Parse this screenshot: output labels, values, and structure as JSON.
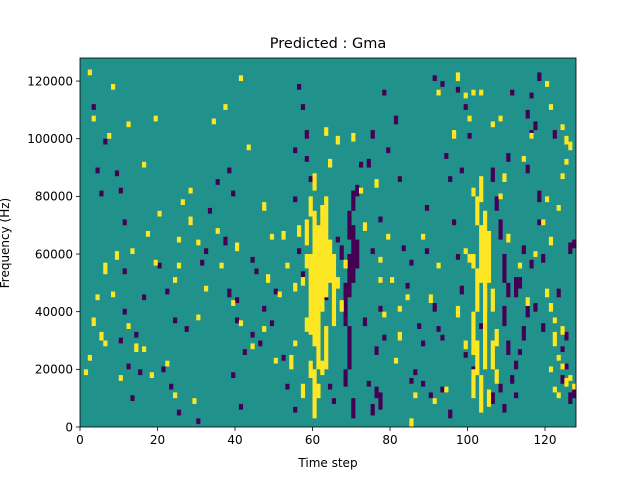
{
  "chart_data": {
    "type": "heatmap",
    "title": "Predicted : Gma",
    "xlabel": "Time step",
    "ylabel": "Frequency (Hz)",
    "xlim": [
      0,
      128
    ],
    "ylim": [
      0,
      128000
    ],
    "xticks": [
      0,
      20,
      40,
      60,
      80,
      100,
      120
    ],
    "yticks": [
      0,
      20000,
      40000,
      60000,
      80000,
      100000,
      120000
    ],
    "colors": {
      "background": "#21918c",
      "high": "#fde725",
      "low": "#440154"
    },
    "grid": false,
    "n_time_steps": 128,
    "n_frequency_bins": 128,
    "bin_height_hz": 1000,
    "high_runs": [
      [
        2,
        122,
        124
      ],
      [
        8,
        117,
        119
      ],
      [
        3,
        106,
        108
      ],
      [
        12,
        104,
        106
      ],
      [
        19,
        106,
        108
      ],
      [
        7,
        100,
        102
      ],
      [
        16,
        90,
        92
      ],
      [
        20,
        73,
        75
      ],
      [
        17,
        66,
        68
      ],
      [
        13,
        60,
        62
      ],
      [
        25,
        64,
        66
      ],
      [
        25,
        55,
        57
      ],
      [
        30,
        63,
        65
      ],
      [
        24,
        50,
        52
      ],
      [
        8,
        45,
        47
      ],
      [
        3,
        35,
        38
      ],
      [
        12,
        34,
        36
      ],
      [
        6,
        28,
        30
      ],
      [
        14,
        26,
        29
      ],
      [
        2,
        23,
        25
      ],
      [
        1,
        18,
        20
      ],
      [
        10,
        16,
        18
      ],
      [
        22,
        21,
        23
      ],
      [
        18,
        17,
        19
      ],
      [
        24,
        10,
        12
      ],
      [
        29,
        8,
        10
      ],
      [
        37,
        110,
        112
      ],
      [
        34,
        105,
        107
      ],
      [
        41,
        120,
        122
      ],
      [
        43,
        96,
        98
      ],
      [
        28,
        81,
        83
      ],
      [
        26,
        77,
        79
      ],
      [
        28,
        70,
        73
      ],
      [
        35,
        67,
        69
      ],
      [
        36,
        55,
        57
      ],
      [
        39,
        42,
        44
      ],
      [
        41,
        35,
        37
      ],
      [
        40,
        61,
        64
      ],
      [
        47,
        75,
        78
      ],
      [
        49,
        65,
        67
      ],
      [
        48,
        50,
        53
      ],
      [
        51,
        45,
        47
      ],
      [
        47,
        33,
        35
      ],
      [
        44,
        27,
        29
      ],
      [
        50,
        22,
        24
      ],
      [
        55,
        28,
        30
      ],
      [
        58,
        33,
        38
      ],
      [
        57,
        10,
        15
      ],
      [
        54,
        20,
        25
      ],
      [
        32,
        47,
        49
      ],
      [
        30,
        37,
        39
      ],
      [
        19,
        56,
        58
      ],
      [
        9,
        58,
        61
      ],
      [
        6,
        53,
        57
      ],
      [
        4,
        44,
        46
      ],
      [
        5,
        30,
        33
      ],
      [
        16,
        26,
        28
      ],
      [
        59,
        17,
        23
      ],
      [
        60,
        3,
        20
      ],
      [
        61,
        10,
        15
      ],
      [
        62,
        18,
        23
      ],
      [
        57,
        49,
        52
      ],
      [
        58,
        55,
        60
      ],
      [
        59,
        32,
        60
      ],
      [
        60,
        28,
        75
      ],
      [
        61,
        20,
        70
      ],
      [
        62,
        40,
        72
      ],
      [
        63,
        45,
        80
      ],
      [
        64,
        50,
        65
      ],
      [
        65,
        55,
        60
      ],
      [
        60,
        82,
        86
      ],
      [
        61,
        50,
        60
      ],
      [
        56,
        66,
        70
      ],
      [
        59,
        73,
        80
      ],
      [
        63,
        20,
        35
      ],
      [
        62,
        72,
        77
      ],
      [
        65,
        35,
        55
      ],
      [
        66,
        48,
        52
      ],
      [
        67,
        40,
        44
      ],
      [
        68,
        55,
        58
      ],
      [
        58,
        63,
        72
      ],
      [
        52,
        65,
        68
      ],
      [
        53,
        55,
        57
      ],
      [
        55,
        47,
        50
      ],
      [
        64,
        90,
        93
      ],
      [
        63,
        101,
        104
      ],
      [
        60,
        86,
        88
      ],
      [
        76,
        83,
        86
      ],
      [
        77,
        57,
        59
      ],
      [
        77,
        50,
        52
      ],
      [
        66,
        98,
        101
      ],
      [
        70,
        99,
        102
      ],
      [
        73,
        68,
        71
      ],
      [
        72,
        81,
        83
      ],
      [
        79,
        65,
        67
      ],
      [
        80,
        50,
        52
      ],
      [
        82,
        40,
        42
      ],
      [
        85,
        0,
        3
      ],
      [
        78,
        38,
        40
      ],
      [
        81,
        22,
        24
      ],
      [
        84,
        44,
        46
      ],
      [
        82,
        30,
        33
      ],
      [
        86,
        10,
        12
      ],
      [
        88,
        65,
        67
      ],
      [
        90,
        43,
        46
      ],
      [
        91,
        8,
        10
      ],
      [
        92,
        55,
        57
      ],
      [
        94,
        12,
        14
      ],
      [
        99,
        60,
        62
      ],
      [
        100,
        57,
        60
      ],
      [
        101,
        10,
        20
      ],
      [
        102,
        18,
        30
      ],
      [
        101,
        25,
        40
      ],
      [
        102,
        40,
        55
      ],
      [
        103,
        50,
        70
      ],
      [
        104,
        60,
        75
      ],
      [
        102,
        70,
        80
      ],
      [
        103,
        78,
        87
      ],
      [
        104,
        20,
        60
      ],
      [
        103,
        5,
        18
      ],
      [
        105,
        7,
        13
      ],
      [
        104,
        40,
        48
      ],
      [
        105,
        50,
        65
      ],
      [
        101,
        55,
        60
      ],
      [
        105,
        63,
        68
      ],
      [
        101,
        80,
        83
      ],
      [
        106,
        40,
        48
      ],
      [
        106,
        20,
        30
      ],
      [
        107,
        15,
        20
      ],
      [
        107,
        28,
        34
      ],
      [
        97,
        38,
        42
      ],
      [
        99,
        27,
        30
      ],
      [
        96,
        100,
        103
      ],
      [
        92,
        115,
        117
      ],
      [
        97,
        120,
        123
      ],
      [
        99,
        114,
        116
      ],
      [
        100,
        106,
        108
      ],
      [
        101,
        115,
        117
      ],
      [
        103,
        115,
        117
      ],
      [
        106,
        104,
        106
      ],
      [
        108,
        106,
        108
      ],
      [
        108,
        79,
        81
      ],
      [
        109,
        85,
        88
      ],
      [
        110,
        64,
        67
      ],
      [
        113,
        55,
        57
      ],
      [
        115,
        42,
        45
      ],
      [
        114,
        92,
        94
      ],
      [
        116,
        100,
        102
      ],
      [
        117,
        59,
        61
      ],
      [
        119,
        70,
        72
      ],
      [
        120,
        78,
        80
      ],
      [
        121,
        63,
        66
      ],
      [
        120,
        45,
        48
      ],
      [
        121,
        40,
        43
      ],
      [
        122,
        36,
        38
      ],
      [
        122,
        28,
        33
      ],
      [
        121,
        19,
        21
      ],
      [
        122,
        12,
        14
      ],
      [
        123,
        10,
        12
      ],
      [
        124,
        32,
        35
      ],
      [
        124,
        103,
        105
      ],
      [
        125,
        98,
        101
      ],
      [
        126,
        96,
        99
      ],
      [
        124,
        86,
        88
      ],
      [
        123,
        75,
        77
      ],
      [
        125,
        91,
        93
      ],
      [
        121,
        110,
        112
      ],
      [
        120,
        118,
        120
      ],
      [
        124,
        20,
        22
      ],
      [
        126,
        16,
        18
      ],
      [
        127,
        13,
        15
      ],
      [
        123,
        23,
        25
      ],
      [
        125,
        14,
        17
      ]
    ],
    "low_runs": [
      [
        3,
        110,
        112
      ],
      [
        6,
        98,
        100
      ],
      [
        4,
        88,
        90
      ],
      [
        5,
        80,
        82
      ],
      [
        9,
        87,
        89
      ],
      [
        10,
        81,
        83
      ],
      [
        11,
        70,
        72
      ],
      [
        11,
        53,
        55
      ],
      [
        11,
        39,
        41
      ],
      [
        14,
        31,
        33
      ],
      [
        10,
        29,
        31
      ],
      [
        16,
        44,
        46
      ],
      [
        12,
        20,
        22
      ],
      [
        13,
        9,
        11
      ],
      [
        15,
        18,
        20
      ],
      [
        20,
        55,
        57
      ],
      [
        22,
        46,
        48
      ],
      [
        24,
        36,
        38
      ],
      [
        27,
        33,
        35
      ],
      [
        21,
        19,
        21
      ],
      [
        23,
        13,
        15
      ],
      [
        25,
        4,
        6
      ],
      [
        30,
        1,
        3
      ],
      [
        31,
        56,
        58
      ],
      [
        32,
        60,
        62
      ],
      [
        33,
        74,
        76
      ],
      [
        35,
        84,
        86
      ],
      [
        38,
        88,
        90
      ],
      [
        39,
        80,
        82
      ],
      [
        37,
        63,
        66
      ],
      [
        38,
        45,
        48
      ],
      [
        40,
        43,
        45
      ],
      [
        40,
        36,
        38
      ],
      [
        42,
        25,
        27
      ],
      [
        39,
        17,
        19
      ],
      [
        41,
        6,
        8
      ],
      [
        44,
        57,
        59
      ],
      [
        45,
        53,
        55
      ],
      [
        44,
        31,
        33
      ],
      [
        47,
        40,
        42
      ],
      [
        46,
        28,
        30
      ],
      [
        49,
        35,
        37
      ],
      [
        50,
        46,
        48
      ],
      [
        52,
        23,
        25
      ],
      [
        53,
        13,
        15
      ],
      [
        55,
        5,
        7
      ],
      [
        57,
        52,
        54
      ],
      [
        56,
        60,
        62
      ],
      [
        55,
        78,
        80
      ],
      [
        55,
        95,
        97
      ],
      [
        57,
        110,
        112
      ],
      [
        56,
        117,
        119
      ],
      [
        58,
        100,
        103
      ],
      [
        59,
        85,
        87
      ],
      [
        58,
        92,
        94
      ],
      [
        63,
        44,
        46
      ],
      [
        64,
        13,
        15
      ],
      [
        65,
        8,
        10
      ],
      [
        66,
        64,
        66
      ],
      [
        67,
        58,
        63
      ],
      [
        68,
        14,
        20
      ],
      [
        69,
        20,
        35
      ],
      [
        68,
        35,
        50
      ],
      [
        69,
        45,
        60
      ],
      [
        70,
        50,
        70
      ],
      [
        71,
        55,
        65
      ],
      [
        69,
        65,
        75
      ],
      [
        70,
        75,
        82
      ],
      [
        70,
        3,
        10
      ],
      [
        71,
        80,
        84
      ],
      [
        72,
        90,
        92
      ],
      [
        73,
        35,
        38
      ],
      [
        74,
        14,
        16
      ],
      [
        76,
        10,
        14
      ],
      [
        75,
        4,
        8
      ],
      [
        77,
        6,
        12
      ],
      [
        76,
        25,
        28
      ],
      [
        78,
        30,
        32
      ],
      [
        77,
        40,
        42
      ],
      [
        75,
        60,
        62
      ],
      [
        77,
        71,
        73
      ],
      [
        74,
        90,
        93
      ],
      [
        75,
        100,
        103
      ],
      [
        78,
        115,
        117
      ],
      [
        79,
        95,
        97
      ],
      [
        81,
        105,
        108
      ],
      [
        82,
        85,
        87
      ],
      [
        83,
        61,
        63
      ],
      [
        85,
        56,
        58
      ],
      [
        84,
        48,
        50
      ],
      [
        87,
        34,
        36
      ],
      [
        88,
        28,
        30
      ],
      [
        86,
        18,
        20
      ],
      [
        85,
        15,
        17
      ],
      [
        88,
        14,
        16
      ],
      [
        90,
        10,
        12
      ],
      [
        89,
        60,
        62
      ],
      [
        91,
        40,
        43
      ],
      [
        92,
        33,
        35
      ],
      [
        93,
        30,
        32
      ],
      [
        89,
        75,
        77
      ],
      [
        91,
        120,
        122
      ],
      [
        93,
        118,
        120
      ],
      [
        94,
        93,
        95
      ],
      [
        95,
        85,
        87
      ],
      [
        96,
        70,
        72
      ],
      [
        97,
        58,
        60
      ],
      [
        98,
        46,
        49
      ],
      [
        99,
        24,
        26
      ],
      [
        93,
        12,
        14
      ],
      [
        95,
        3,
        6
      ],
      [
        97,
        116,
        118
      ],
      [
        99,
        110,
        112
      ],
      [
        100,
        100,
        102
      ],
      [
        98,
        88,
        90
      ],
      [
        106,
        85,
        90
      ],
      [
        107,
        75,
        80
      ],
      [
        108,
        65,
        72
      ],
      [
        109,
        50,
        60
      ],
      [
        110,
        45,
        50
      ],
      [
        109,
        35,
        42
      ],
      [
        110,
        25,
        30
      ],
      [
        108,
        12,
        15
      ],
      [
        106,
        8,
        12
      ],
      [
        109,
        5,
        8
      ],
      [
        111,
        15,
        18
      ],
      [
        112,
        20,
        23
      ],
      [
        113,
        25,
        27
      ],
      [
        114,
        30,
        35
      ],
      [
        115,
        38,
        42
      ],
      [
        112,
        45,
        52
      ],
      [
        113,
        48,
        52
      ],
      [
        114,
        60,
        63
      ],
      [
        116,
        55,
        58
      ],
      [
        115,
        88,
        91
      ],
      [
        118,
        78,
        82
      ],
      [
        119,
        57,
        60
      ],
      [
        117,
        40,
        43
      ],
      [
        118,
        70,
        72
      ],
      [
        119,
        33,
        36
      ],
      [
        116,
        100,
        103
      ],
      [
        117,
        103,
        106
      ],
      [
        115,
        107,
        110
      ],
      [
        116,
        114,
        116
      ],
      [
        118,
        120,
        123
      ],
      [
        122,
        100,
        103
      ],
      [
        123,
        45,
        48
      ],
      [
        125,
        30,
        33
      ],
      [
        124,
        26,
        28
      ],
      [
        126,
        8,
        12
      ],
      [
        127,
        10,
        14
      ],
      [
        125,
        20,
        22
      ],
      [
        126,
        60,
        64
      ],
      [
        127,
        62,
        65
      ],
      [
        124,
        15,
        18
      ],
      [
        101,
        18,
        21
      ],
      [
        103,
        34,
        36
      ],
      [
        110,
        92,
        95
      ],
      [
        111,
        115,
        117
      ],
      [
        112,
        10,
        12
      ]
    ]
  }
}
